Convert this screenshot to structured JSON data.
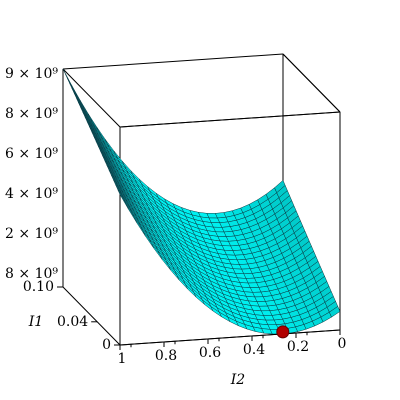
{
  "chart_data": {
    "type": "surface3d",
    "x_label": "I2",
    "y_label": "I1",
    "xlim": [
      1,
      0
    ],
    "xticks": [
      1,
      0.8,
      0.6,
      0.4,
      0.2,
      0
    ],
    "ylim": [
      0,
      0.1
    ],
    "yticks": [
      0,
      0.04,
      {
        "value": 0.1,
        "label": "0.10"
      }
    ],
    "z_tick_labels": [
      "9 × 10⁹",
      "8 × 10⁹",
      "6 × 10⁹",
      "4 × 10⁹",
      "2 × 10⁹",
      "8 × 10⁹"
    ],
    "color": "#00f0f0"
  }
}
